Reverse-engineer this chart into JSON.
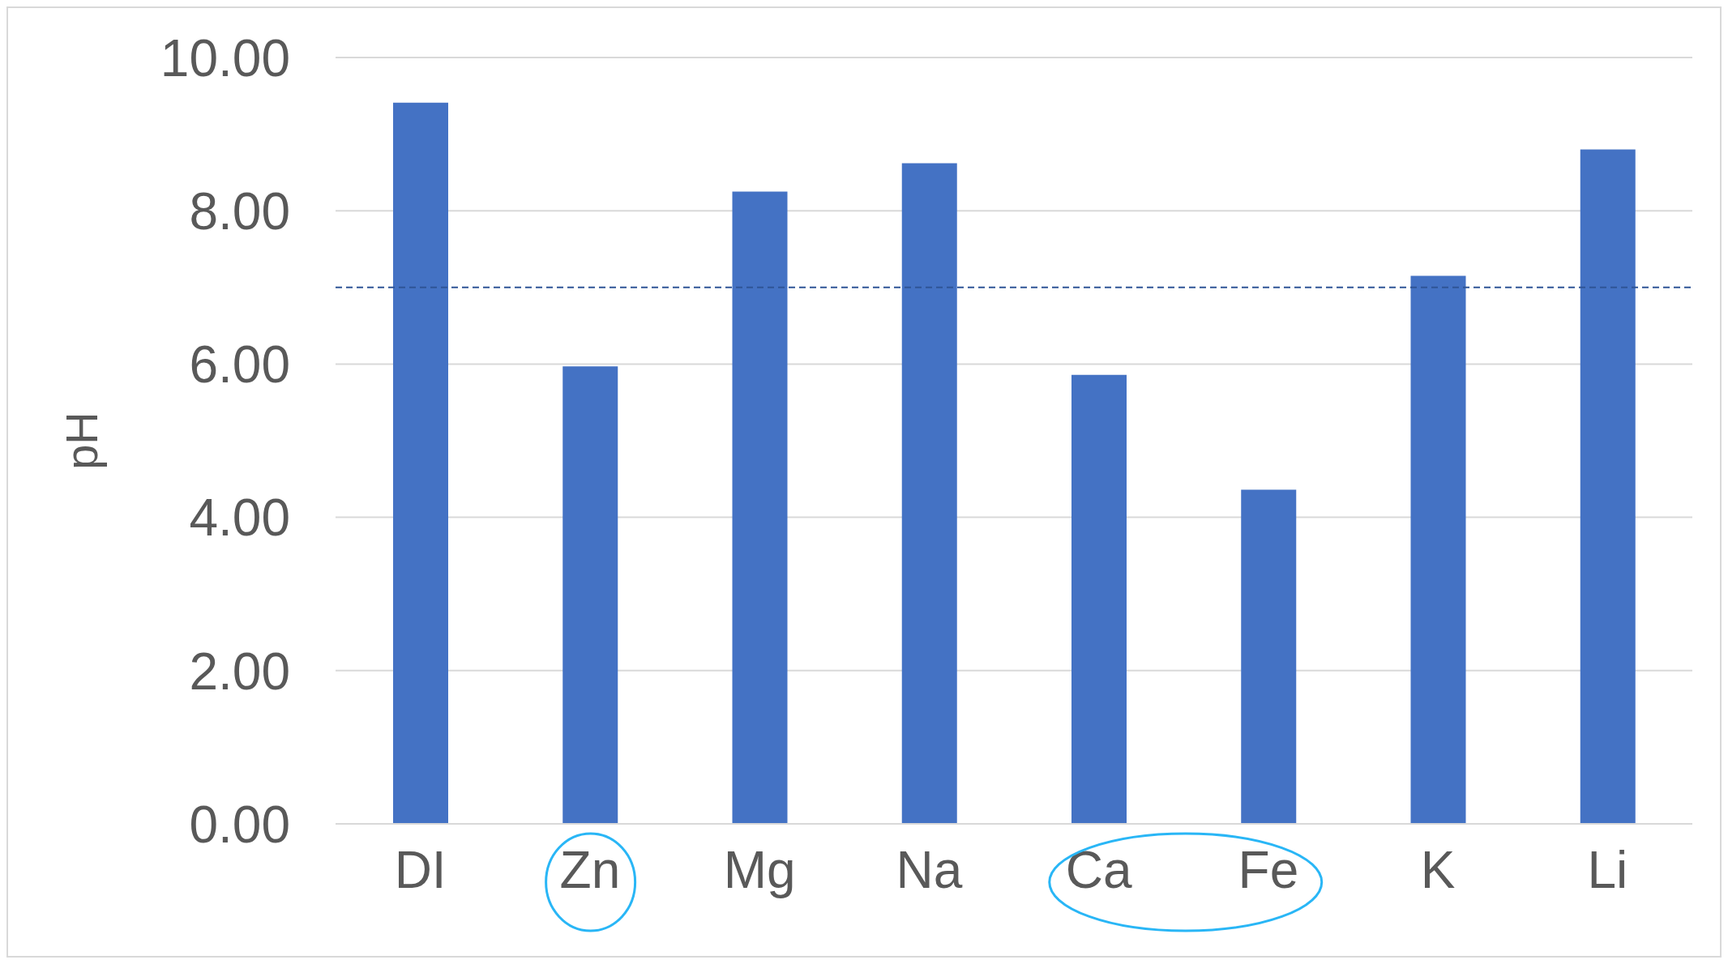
{
  "chart_data": {
    "type": "bar",
    "ylabel": "pH",
    "categories": [
      "DI",
      "Zn",
      "Mg",
      "Na",
      "Ca",
      "Fe",
      "K",
      "Li"
    ],
    "values": [
      9.41,
      5.97,
      8.25,
      8.62,
      5.86,
      4.36,
      7.15,
      8.8
    ],
    "color": "#4472c4",
    "ylim": [
      0,
      10
    ],
    "yticks": [
      {
        "value": 0,
        "label": "0.00"
      },
      {
        "value": 2,
        "label": "2.00"
      },
      {
        "value": 4,
        "label": "4.00"
      },
      {
        "value": 6,
        "label": "6.00"
      },
      {
        "value": 8,
        "label": "8.00"
      },
      {
        "value": 10,
        "label": "10.00"
      }
    ],
    "grid": "y",
    "ref_lines": [
      {
        "axis": "y",
        "value": 7,
        "label": null,
        "color": "#2f5597",
        "line_style": "dashed"
      }
    ]
  }
}
